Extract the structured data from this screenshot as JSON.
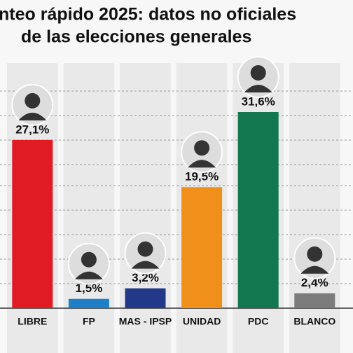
{
  "chart_data": {
    "type": "bar",
    "title": [
      "nteo rápido 2025: datos no oficiales",
      "de las elecciones generales"
    ],
    "categories": [
      "LIBRE",
      "FP",
      "MAS - IPSP",
      "UNIDAD",
      "PDC",
      "BLANCO"
    ],
    "values": [
      27.1,
      1.5,
      3.2,
      19.5,
      31.6,
      2.4
    ],
    "value_labels": [
      "27,1%",
      "1,5%",
      "3,2%",
      "19,5%",
      "31,6%",
      "2,4%"
    ],
    "colors": [
      "#e01b24",
      "#1f7fc9",
      "#22398a",
      "#f0901a",
      "#13774f",
      "#7b7b7b"
    ],
    "ylim": [
      0,
      36
    ]
  }
}
